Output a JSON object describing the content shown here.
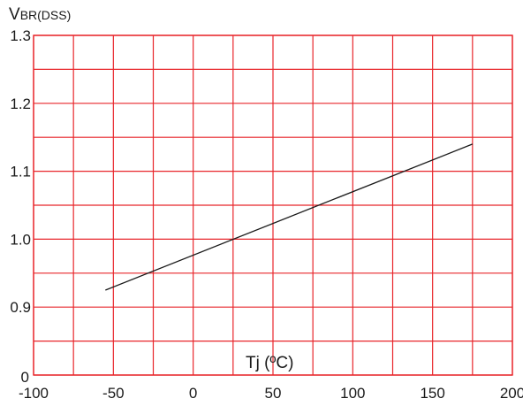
{
  "chart_data": {
    "type": "line",
    "title": "",
    "ylabel": {
      "main": "V",
      "sub": "BR(DSS)"
    },
    "xlabel": "Tj (ºC)",
    "xlim": [
      -100,
      200
    ],
    "ylim": [
      0.8,
      1.3
    ],
    "x_ticks": [
      -100,
      -50,
      0,
      50,
      100,
      150,
      200
    ],
    "y_ticks": [
      0.9,
      1.0,
      1.1,
      1.2,
      1.3
    ],
    "x_tick_labels": [
      "-100",
      "-50",
      "0",
      "50",
      "100",
      "150",
      "200"
    ],
    "y_tick_labels": [
      "0.9",
      "1.0",
      "1.1",
      "1.2",
      "1.3"
    ],
    "origin_label": "0",
    "grid": true,
    "grid_color": "#e8262b",
    "line_color": "#1a1a1a",
    "series": [
      {
        "x": [
          -55,
          175
        ],
        "y": [
          0.925,
          1.14
        ]
      }
    ]
  }
}
